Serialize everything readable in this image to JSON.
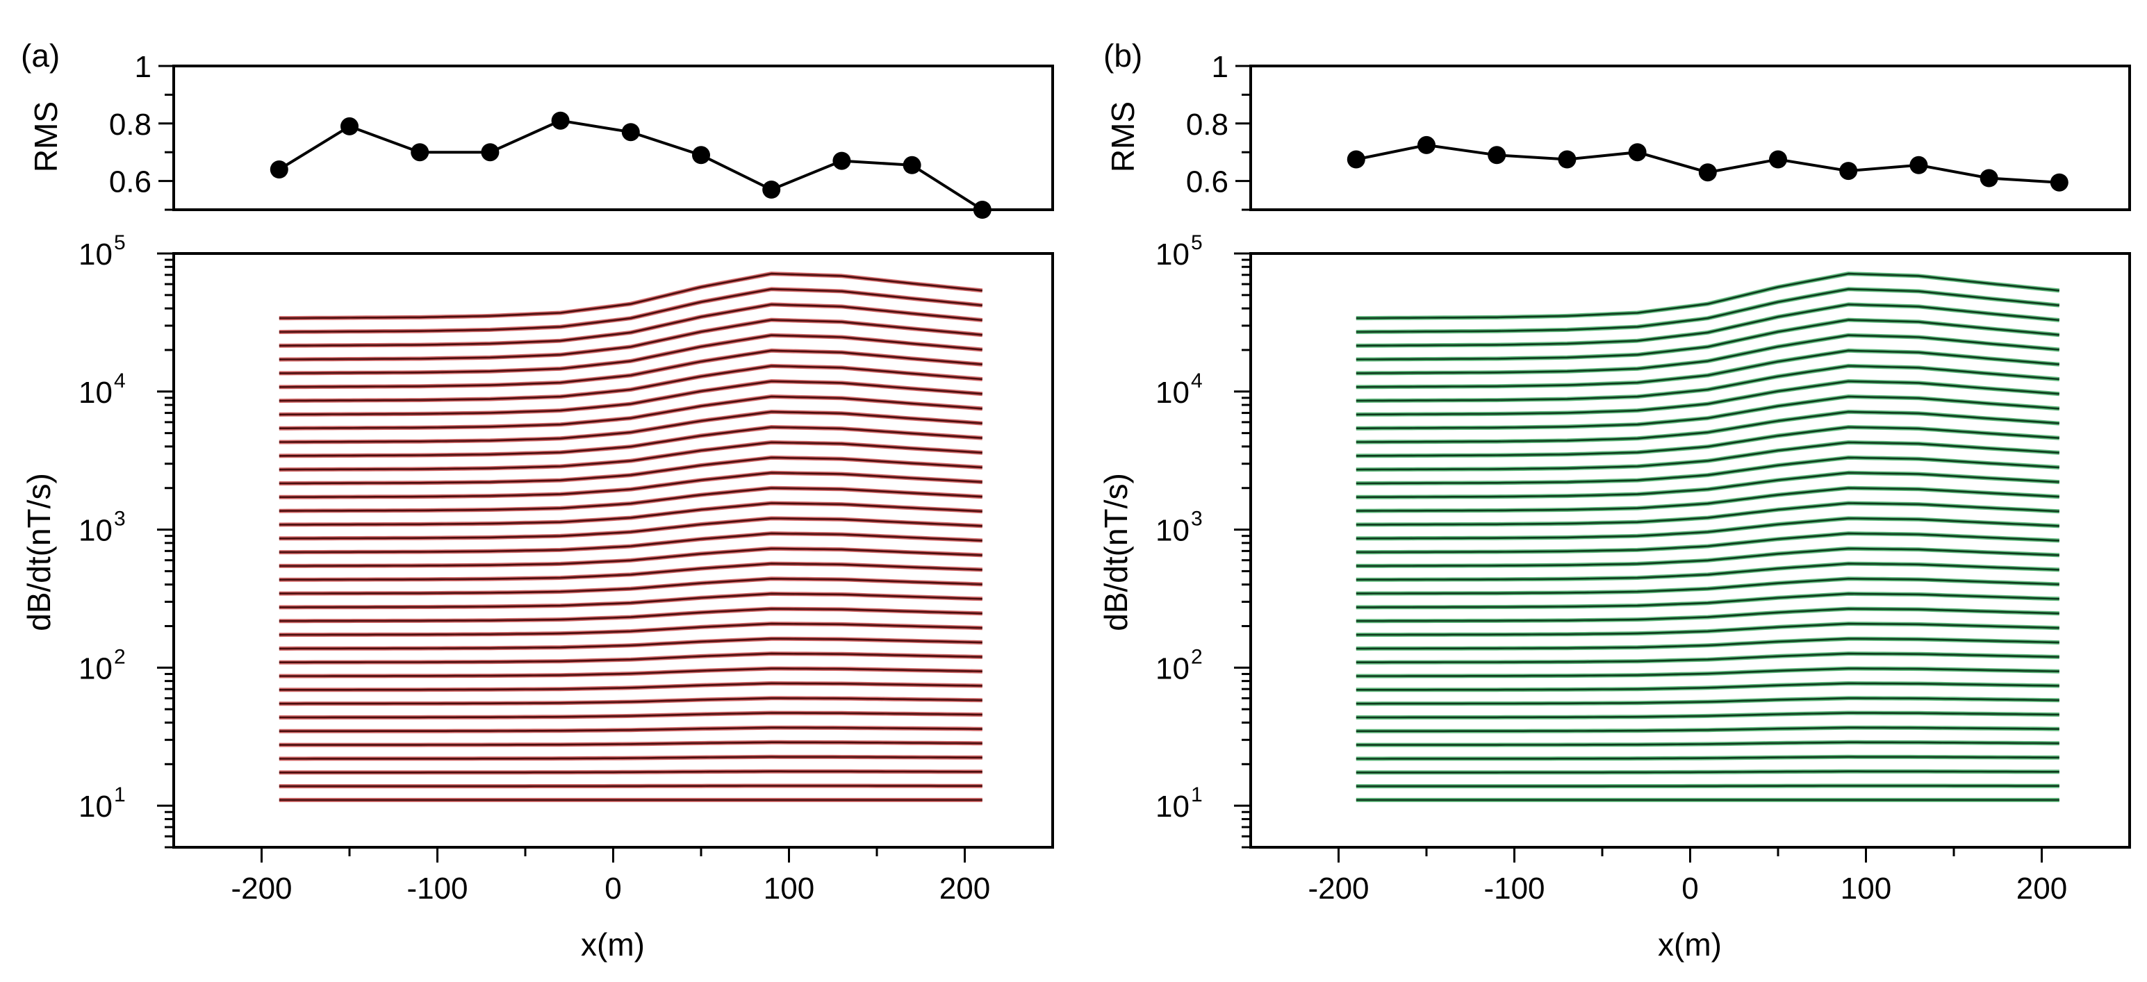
{
  "figure": {
    "panels": [
      {
        "id": "a",
        "label": "(a)",
        "color_dark": "#4a0d0d",
        "color_light": "#e87878"
      },
      {
        "id": "b",
        "label": "(b)",
        "color_dark": "#0d3a1c",
        "color_light": "#6fcf8e"
      }
    ]
  },
  "chart_data": [
    {
      "panel": "a",
      "type": "line",
      "title": "",
      "xlabel": "",
      "ylabel": "RMS",
      "xlim": [
        -250,
        250
      ],
      "ylim": [
        0.5,
        1.0
      ],
      "yticks": [
        0.6,
        0.8,
        1.0
      ],
      "ytick_labels": [
        "0.6",
        "0.8",
        "1"
      ],
      "x": [
        -190,
        -150,
        -110,
        -70,
        -30,
        10,
        50,
        90,
        130,
        170,
        210
      ],
      "values": [
        0.64,
        0.79,
        0.7,
        0.7,
        0.81,
        0.77,
        0.69,
        0.57,
        0.67,
        0.655,
        0.5
      ]
    },
    {
      "panel": "a",
      "type": "line",
      "title": "",
      "xlabel": "x(m)",
      "ylabel": "dB/dt(nT/s)",
      "xlim": [
        -250,
        250
      ],
      "xticks": [
        -200,
        -100,
        0,
        100,
        200
      ],
      "xtick_labels": [
        "-200",
        "-100",
        "0",
        "100",
        "200"
      ],
      "yscale": "log",
      "ylim": [
        5,
        100000
      ],
      "ytick_bases": [
        "10",
        "10",
        "10",
        "10",
        "10"
      ],
      "ytick_exps": [
        "1",
        "2",
        "3",
        "4",
        "5"
      ],
      "x": [
        -190,
        -150,
        -110,
        -70,
        -30,
        10,
        50,
        90,
        130,
        170,
        210
      ],
      "n_curves": 36,
      "early_time_value_left": 34000,
      "late_time_value_left": 11,
      "anomaly_peak_ratio_early": 2.1,
      "note": "36 decay-time curves (observed + predicted) plotted against x; each curve value is its left-end value times the anomaly profile, the anomaly fading from early to late time"
    },
    {
      "panel": "b",
      "type": "line",
      "title": "",
      "xlabel": "",
      "ylabel": "RMS",
      "xlim": [
        -250,
        250
      ],
      "ylim": [
        0.5,
        1.0
      ],
      "yticks": [
        0.6,
        0.8,
        1.0
      ],
      "ytick_labels": [
        "0.6",
        "0.8",
        "1"
      ],
      "x": [
        -190,
        -150,
        -110,
        -70,
        -30,
        10,
        50,
        90,
        130,
        170,
        210
      ],
      "values": [
        0.675,
        0.725,
        0.69,
        0.675,
        0.7,
        0.63,
        0.675,
        0.635,
        0.655,
        0.61,
        0.595
      ]
    },
    {
      "panel": "b",
      "type": "line",
      "title": "",
      "xlabel": "x(m)",
      "ylabel": "dB/dt(nT/s)",
      "xlim": [
        -250,
        250
      ],
      "xticks": [
        -200,
        -100,
        0,
        100,
        200
      ],
      "xtick_labels": [
        "-200",
        "-100",
        "0",
        "100",
        "200"
      ],
      "yscale": "log",
      "ylim": [
        5,
        100000
      ],
      "ytick_bases": [
        "10",
        "10",
        "10",
        "10",
        "10"
      ],
      "ytick_exps": [
        "1",
        "2",
        "3",
        "4",
        "5"
      ],
      "x": [
        -190,
        -150,
        -110,
        -70,
        -30,
        10,
        50,
        90,
        130,
        170,
        210
      ],
      "n_curves": 36,
      "early_time_value_left": 34000,
      "late_time_value_left": 11,
      "anomaly_peak_ratio_early": 2.1,
      "note": "36 decay-time curves (observed + predicted) plotted against x; each curve value is its left-end value times the anomaly profile, the anomaly fading from early to late time"
    }
  ]
}
